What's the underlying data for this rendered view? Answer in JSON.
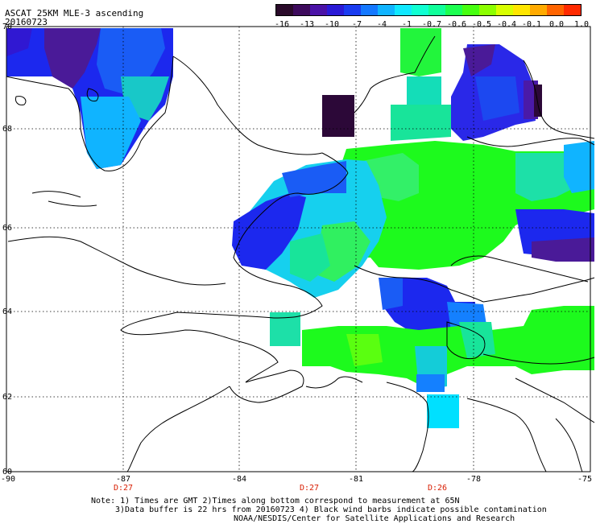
{
  "title": {
    "product": "ASCAT 25KM MLE-3 ascending",
    "date": "20160723"
  },
  "colorbar": {
    "labels": [
      "-16",
      "-13",
      "-10",
      "-7",
      "-4",
      "-1",
      "-0.7",
      "-0.6",
      "-0.5",
      "-0.4",
      "-0.1",
      "0.0",
      "1.0"
    ],
    "colors": [
      "#2a0a2a",
      "#3d0a5c",
      "#4a12a6",
      "#2a1ad6",
      "#1a3cf0",
      "#1478ff",
      "#10b4ff",
      "#10e8ff",
      "#10ffd2",
      "#10ff9a",
      "#1cff50",
      "#46ff10",
      "#8cff00",
      "#d8ff00",
      "#ffe600",
      "#ffaa00",
      "#ff6400",
      "#ff2a00"
    ]
  },
  "axes": {
    "lat_labels": [
      "70",
      "68",
      "66",
      "64",
      "62",
      "60"
    ],
    "lon_labels": [
      "-90",
      "-87",
      "-84",
      "-81",
      "-78",
      "-75"
    ]
  },
  "time_labels": [
    "D:27",
    "D:27",
    "D:26"
  ],
  "notes": [
    "Note: 1) Times are GMT 2)Times along bottom correspond to measurement at 65N",
    "3)Data buffer is 22 hrs from 20160723 4) Black wind barbs indicate possible contamination",
    "NOAA/NESDIS/Center for Satellite Applications and Research"
  ],
  "palette": {
    "green": "#1dfa1d",
    "lime": "#33ff00",
    "cyan": "#00e5ff",
    "sky": "#00a0ff",
    "blue": "#1c28ee",
    "royal": "#3018d2",
    "purple": "#4a1a98",
    "darkpurple": "#2c0838",
    "mint": "#1de0a8"
  }
}
